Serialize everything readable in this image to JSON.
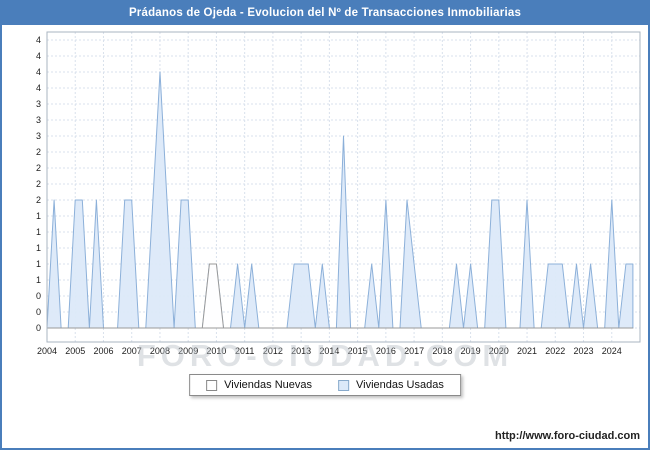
{
  "title": "Prádanos de Ojeda - Evolucion del Nº de Transacciones Inmobiliarias",
  "watermark": "FORO-CIUDAD.COM",
  "footer": {
    "url": "http://www.foro-ciudad.com"
  },
  "colors": {
    "titlebar_bg": "#4a7ebb",
    "frame": "#aab4c0",
    "grid": "#d9e1ec",
    "usadas_fill": "#dce9f9",
    "usadas_stroke": "#8cb0d9",
    "nuevas_fill": "#ffffff",
    "nuevas_stroke": "#999999"
  },
  "legend": {
    "items": [
      {
        "label": "Viviendas Nuevas",
        "color": "#ffffff",
        "border": "#888888"
      },
      {
        "label": "Viviendas Usadas",
        "color": "#dce9f9",
        "border": "#88aacc"
      }
    ]
  },
  "chart_data": {
    "type": "area",
    "title": "Prádanos de Ojeda - Evolucion del Nº de Transacciones Inmobiliarias",
    "xlabel": "",
    "ylabel": "",
    "x_years": [
      "2004",
      "2005",
      "2006",
      "2007",
      "2008",
      "2009",
      "2010",
      "2011",
      "2012",
      "2013",
      "2014",
      "2015",
      "2016",
      "2017",
      "2018",
      "2019",
      "2020",
      "2021",
      "2022",
      "2023",
      "2024"
    ],
    "points_per_year": 4,
    "y_axis_labels": [
      "4",
      "4",
      "4",
      "4",
      "3",
      "3",
      "3",
      "2",
      "2",
      "2",
      "2",
      "1",
      "1",
      "1",
      "1",
      "1",
      "0",
      "0",
      "0"
    ],
    "y_max": 4.5,
    "ylim": [
      0,
      4.5
    ],
    "grid": true,
    "legend_position": "bottom",
    "series": [
      {
        "name": "Viviendas Nuevas",
        "fill": "#ffffff",
        "stroke": "#999999",
        "values": [
          0,
          0,
          0,
          0,
          0,
          0,
          0,
          0,
          0,
          0,
          0,
          0,
          0,
          0,
          0,
          0,
          0,
          0,
          0,
          0,
          0,
          0,
          0,
          1,
          1,
          0,
          0,
          0,
          0,
          0,
          0,
          0,
          0,
          0,
          0,
          0,
          0,
          0,
          0,
          0,
          0,
          0,
          0,
          0,
          0,
          0,
          0,
          0,
          0,
          0,
          0,
          0,
          0,
          0,
          0,
          0,
          0,
          0,
          0,
          0,
          0,
          0,
          0,
          0,
          0,
          0,
          0,
          0,
          0,
          0,
          0,
          0,
          0,
          0,
          0,
          0,
          0,
          0,
          0,
          0,
          0,
          0,
          0,
          0
        ]
      },
      {
        "name": "Viviendas Usadas",
        "fill": "#dce9f9",
        "stroke": "#8cb0d9",
        "values": [
          0,
          2,
          0,
          0,
          2,
          2,
          0,
          2,
          0,
          0,
          0,
          2,
          2,
          0,
          0,
          2,
          4,
          2,
          0,
          2,
          2,
          0,
          0,
          1,
          1,
          0,
          0,
          1,
          0,
          1,
          0,
          0,
          0,
          0,
          0,
          1,
          1,
          1,
          0,
          1,
          0,
          0,
          3,
          0,
          0,
          0,
          1,
          0,
          2,
          0,
          0,
          2,
          1,
          0,
          0,
          0,
          0,
          0,
          1,
          0,
          1,
          0,
          0,
          2,
          2,
          0,
          0,
          0,
          2,
          0,
          0,
          1,
          1,
          1,
          0,
          1,
          0,
          1,
          0,
          0,
          2,
          0,
          1,
          1
        ]
      }
    ]
  }
}
